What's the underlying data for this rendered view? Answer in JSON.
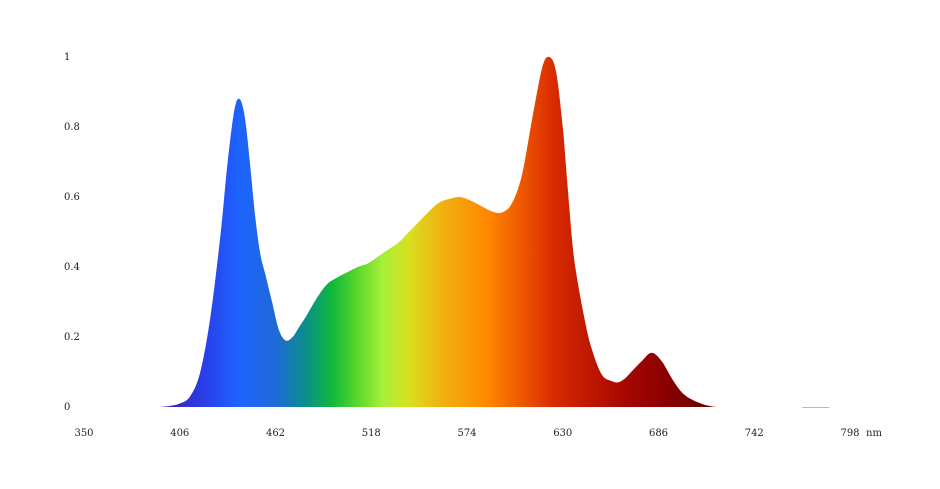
{
  "chart_data": {
    "type": "area",
    "title": "",
    "xlabel": "",
    "ylabel": "",
    "x_unit": "nm",
    "xlim": [
      350,
      798
    ],
    "ylim": [
      0,
      1
    ],
    "x_ticks": [
      "350",
      "406",
      "462",
      "518",
      "574",
      "630",
      "686",
      "742",
      "798"
    ],
    "y_ticks": [
      "0",
      "0.2",
      "0.4",
      "0.6",
      "0.8",
      "1"
    ],
    "grid": false,
    "legend": "none",
    "fill": "visible-spectrum gradient",
    "series": [
      {
        "x": [
          394,
          400,
          406,
          412,
          418,
          424,
          430,
          434,
          438,
          441,
          444,
          447,
          450,
          453,
          456,
          460,
          464,
          468,
          472,
          476,
          480,
          486,
          492,
          498,
          504,
          510,
          516,
          522,
          528,
          534,
          540,
          546,
          552,
          558,
          564,
          570,
          576,
          582,
          588,
          594,
          600,
          606,
          612,
          618,
          622,
          626,
          630,
          633,
          636,
          639,
          642,
          645,
          648,
          651,
          654,
          658,
          662,
          666,
          670,
          676,
          682,
          688,
          694,
          700,
          706,
          712,
          716,
          720,
          723,
          726,
          730,
          736,
          742,
          748,
          754,
          760
        ],
        "y": [
          0.0,
          0.003,
          0.01,
          0.03,
          0.1,
          0.26,
          0.5,
          0.7,
          0.85,
          0.88,
          0.83,
          0.7,
          0.55,
          0.44,
          0.38,
          0.3,
          0.22,
          0.19,
          0.2,
          0.23,
          0.26,
          0.31,
          0.35,
          0.37,
          0.385,
          0.4,
          0.41,
          0.43,
          0.45,
          0.47,
          0.5,
          0.53,
          0.56,
          0.585,
          0.595,
          0.6,
          0.59,
          0.575,
          0.56,
          0.555,
          0.58,
          0.66,
          0.82,
          0.97,
          1.0,
          0.96,
          0.8,
          0.62,
          0.45,
          0.35,
          0.27,
          0.2,
          0.15,
          0.11,
          0.085,
          0.075,
          0.07,
          0.08,
          0.1,
          0.13,
          0.155,
          0.13,
          0.08,
          0.04,
          0.02,
          0.008,
          0.003,
          0.0,
          0.0,
          0.0,
          0.0,
          0.0,
          0.0,
          0.0,
          0.0,
          0.0
        ]
      }
    ],
    "colors": {
      "axis_text": "#222222",
      "background": "#ffffff"
    }
  }
}
